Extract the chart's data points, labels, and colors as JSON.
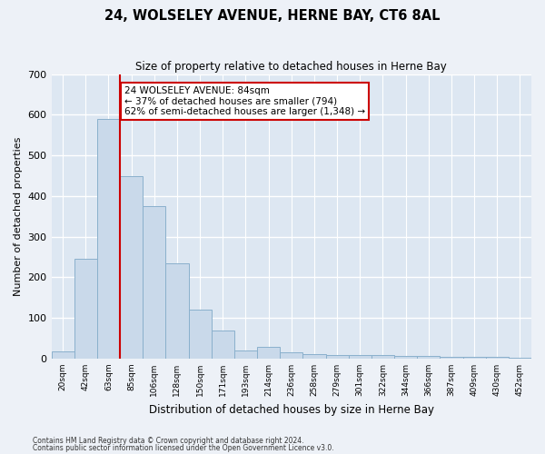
{
  "title": "24, WOLSELEY AVENUE, HERNE BAY, CT6 8AL",
  "subtitle": "Size of property relative to detached houses in Herne Bay",
  "xlabel": "Distribution of detached houses by size in Herne Bay",
  "ylabel": "Number of detached properties",
  "bar_color": "#c9d9ea",
  "bar_edge_color": "#8ab0cc",
  "background_color": "#dde7f2",
  "grid_color": "#ffffff",
  "fig_facecolor": "#edf1f7",
  "bins": [
    "20sqm",
    "42sqm",
    "63sqm",
    "85sqm",
    "106sqm",
    "128sqm",
    "150sqm",
    "171sqm",
    "193sqm",
    "214sqm",
    "236sqm",
    "258sqm",
    "279sqm",
    "301sqm",
    "322sqm",
    "344sqm",
    "366sqm",
    "387sqm",
    "409sqm",
    "430sqm",
    "452sqm"
  ],
  "values": [
    18,
    245,
    590,
    450,
    375,
    235,
    120,
    68,
    20,
    28,
    15,
    10,
    9,
    9,
    8,
    6,
    6,
    4,
    4,
    5,
    3
  ],
  "ylim": [
    0,
    700
  ],
  "yticks": [
    0,
    100,
    200,
    300,
    400,
    500,
    600,
    700
  ],
  "property_line_bin": 3,
  "annotation_line1": "24 WOLSELEY AVENUE: 84sqm",
  "annotation_line2": "← 37% of detached houses are smaller (794)",
  "annotation_line3": "62% of semi-detached houses are larger (1,348) →",
  "annotation_box_facecolor": "#ffffff",
  "annotation_box_edgecolor": "#cc0000",
  "footnote1": "Contains HM Land Registry data © Crown copyright and database right 2024.",
  "footnote2": "Contains public sector information licensed under the Open Government Licence v3.0."
}
